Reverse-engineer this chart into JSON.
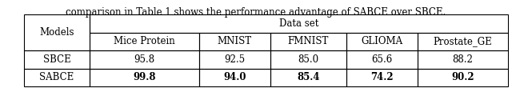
{
  "title_text": "comparison in Table 1 shows the performance advantage of SABCE over SBCE.",
  "header_top": "Data set",
  "header_row": [
    "Models",
    "Mice Protein",
    "MNIST",
    "FMNIST",
    "GLIOMA",
    "Prostate_GE"
  ],
  "rows": [
    [
      "SBCE",
      "95.8",
      "92.5",
      "85.0",
      "65.6",
      "88.2"
    ],
    [
      "SABCE",
      "99.8",
      "94.0",
      "85.4",
      "74.2",
      "90.2"
    ]
  ],
  "bold_rows": [
    1
  ],
  "bg_color": "#ffffff",
  "text_color": "#000000",
  "font_size": 8.5,
  "title_font_size": 8.5
}
